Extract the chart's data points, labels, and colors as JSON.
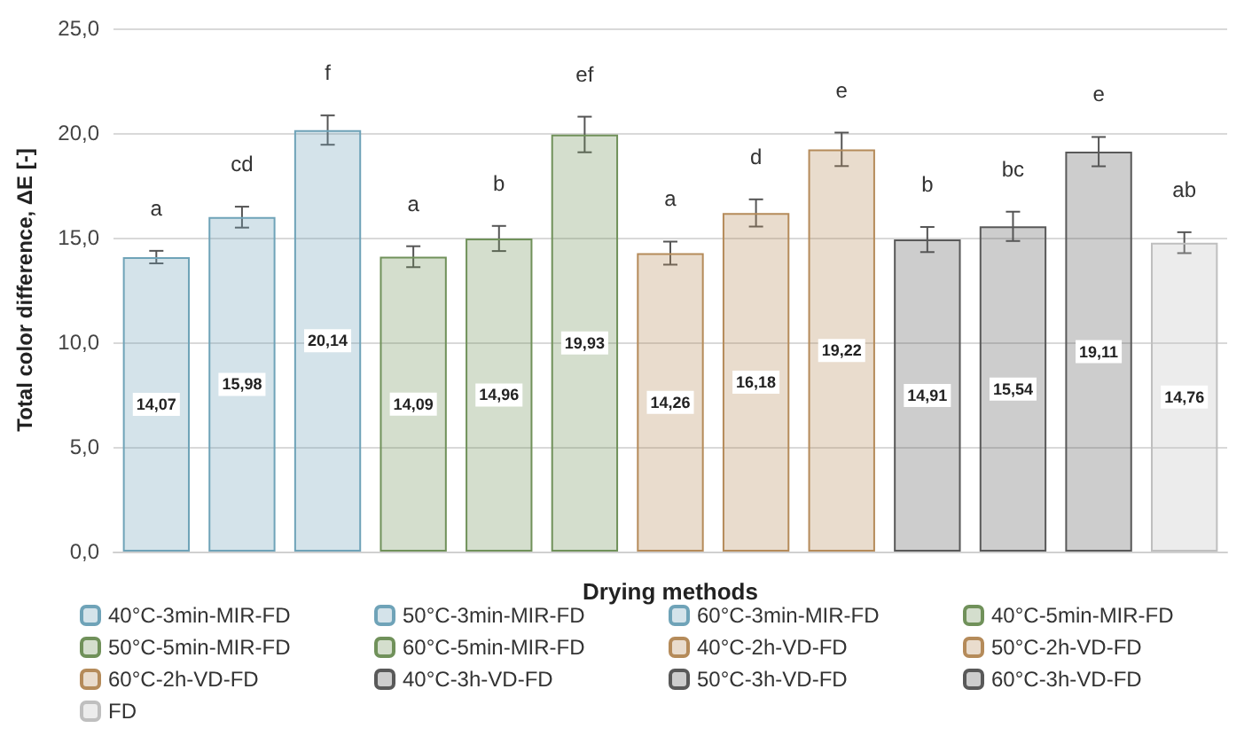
{
  "chart_data": {
    "type": "bar",
    "xlabel": "Drying methods",
    "ylabel": "Total color difference, ΔE [-]",
    "categories": [
      null,
      null,
      null,
      null,
      null,
      null,
      null,
      null,
      null,
      null,
      null,
      null,
      null
    ],
    "series": [
      {
        "name": "40°C-3min-MIR-FD",
        "color": "#6fa3b8",
        "values": [
          14.07,
          null,
          null,
          null,
          null,
          null,
          null,
          null,
          null,
          null,
          null,
          null,
          null
        ],
        "errors": [
          0.3,
          null,
          null,
          null,
          null,
          null,
          null,
          null,
          null,
          null,
          null,
          null,
          null
        ],
        "value_labels": [
          "14,07",
          null,
          null,
          null,
          null,
          null,
          null,
          null,
          null,
          null,
          null,
          null,
          null
        ]
      },
      {
        "name": "50°C-3min-MIR-FD",
        "color": "#6fa3b8",
        "values": [
          null,
          15.98,
          null,
          null,
          null,
          null,
          null,
          null,
          null,
          null,
          null,
          null,
          null
        ],
        "errors": [
          null,
          0.5,
          null,
          null,
          null,
          null,
          null,
          null,
          null,
          null,
          null,
          null,
          null
        ],
        "value_labels": [
          null,
          "15,98",
          null,
          null,
          null,
          null,
          null,
          null,
          null,
          null,
          null,
          null,
          null
        ]
      },
      {
        "name": "60°C-3min-MIR-FD",
        "color": "#6fa3b8",
        "values": [
          null,
          null,
          20.14,
          null,
          null,
          null,
          null,
          null,
          null,
          null,
          null,
          null,
          null
        ],
        "errors": [
          null,
          null,
          0.7,
          null,
          null,
          null,
          null,
          null,
          null,
          null,
          null,
          null,
          null
        ],
        "value_labels": [
          null,
          null,
          "20,14",
          null,
          null,
          null,
          null,
          null,
          null,
          null,
          null,
          null,
          null
        ]
      },
      {
        "name": "40°C-5min-MIR-FD",
        "color": "#70915a",
        "values": [
          null,
          null,
          null,
          14.09,
          null,
          null,
          null,
          null,
          null,
          null,
          null,
          null,
          null
        ],
        "errors": [
          null,
          null,
          null,
          0.5,
          null,
          null,
          null,
          null,
          null,
          null,
          null,
          null,
          null
        ],
        "value_labels": [
          null,
          null,
          null,
          "14,09",
          null,
          null,
          null,
          null,
          null,
          null,
          null,
          null,
          null
        ]
      },
      {
        "name": "50°C-5min-MIR-FD",
        "color": "#70915a",
        "values": [
          null,
          null,
          null,
          null,
          14.96,
          null,
          null,
          null,
          null,
          null,
          null,
          null,
          null
        ],
        "errors": [
          null,
          null,
          null,
          null,
          0.6,
          null,
          null,
          null,
          null,
          null,
          null,
          null,
          null
        ],
        "value_labels": [
          null,
          null,
          null,
          null,
          "14,96",
          null,
          null,
          null,
          null,
          null,
          null,
          null,
          null
        ]
      },
      {
        "name": "60°C-5min-MIR-FD",
        "color": "#70915a",
        "values": [
          null,
          null,
          null,
          null,
          null,
          19.93,
          null,
          null,
          null,
          null,
          null,
          null,
          null
        ],
        "errors": [
          null,
          null,
          null,
          null,
          null,
          0.85,
          null,
          null,
          null,
          null,
          null,
          null,
          null
        ],
        "value_labels": [
          null,
          null,
          null,
          null,
          null,
          "19,93",
          null,
          null,
          null,
          null,
          null,
          null,
          null
        ]
      },
      {
        "name": "40°C-2h-VD-FD",
        "color": "#b58b5a",
        "values": [
          null,
          null,
          null,
          null,
          null,
          null,
          14.26,
          null,
          null,
          null,
          null,
          null,
          null
        ],
        "errors": [
          null,
          null,
          null,
          null,
          null,
          null,
          0.55,
          null,
          null,
          null,
          null,
          null,
          null
        ],
        "value_labels": [
          null,
          null,
          null,
          null,
          null,
          null,
          "14,26",
          null,
          null,
          null,
          null,
          null,
          null
        ]
      },
      {
        "name": "50°C-2h-VD-FD",
        "color": "#b58b5a",
        "values": [
          null,
          null,
          null,
          null,
          null,
          null,
          null,
          16.18,
          null,
          null,
          null,
          null,
          null
        ],
        "errors": [
          null,
          null,
          null,
          null,
          null,
          null,
          null,
          0.65,
          null,
          null,
          null,
          null,
          null
        ],
        "value_labels": [
          null,
          null,
          null,
          null,
          null,
          null,
          null,
          "16,18",
          null,
          null,
          null,
          null,
          null
        ]
      },
      {
        "name": "60°C-2h-VD-FD",
        "color": "#b58b5a",
        "values": [
          null,
          null,
          null,
          null,
          null,
          null,
          null,
          null,
          19.22,
          null,
          null,
          null,
          null
        ],
        "errors": [
          null,
          null,
          null,
          null,
          null,
          null,
          null,
          null,
          0.8,
          null,
          null,
          null,
          null
        ],
        "value_labels": [
          null,
          null,
          null,
          null,
          null,
          null,
          null,
          null,
          "19,22",
          null,
          null,
          null,
          null
        ]
      },
      {
        "name": "40°C-3h-VD-FD",
        "color": "#595959",
        "values": [
          null,
          null,
          null,
          null,
          null,
          null,
          null,
          null,
          null,
          14.91,
          null,
          null,
          null
        ],
        "errors": [
          null,
          null,
          null,
          null,
          null,
          null,
          null,
          null,
          null,
          0.6,
          null,
          null,
          null
        ],
        "value_labels": [
          null,
          null,
          null,
          null,
          null,
          null,
          null,
          null,
          null,
          "14,91",
          null,
          null,
          null
        ]
      },
      {
        "name": "50°C-3h-VD-FD",
        "color": "#595959",
        "values": [
          null,
          null,
          null,
          null,
          null,
          null,
          null,
          null,
          null,
          null,
          15.54,
          null,
          null
        ],
        "errors": [
          null,
          null,
          null,
          null,
          null,
          null,
          null,
          null,
          null,
          null,
          0.7,
          null,
          null
        ],
        "value_labels": [
          null,
          null,
          null,
          null,
          null,
          null,
          null,
          null,
          null,
          null,
          "15,54",
          null,
          null
        ]
      },
      {
        "name": "60°C-3h-VD-FD",
        "color": "#595959",
        "values": [
          null,
          null,
          null,
          null,
          null,
          null,
          null,
          null,
          null,
          null,
          null,
          19.11,
          null
        ],
        "errors": [
          null,
          null,
          null,
          null,
          null,
          null,
          null,
          null,
          null,
          null,
          null,
          0.7,
          null
        ],
        "value_labels": [
          null,
          null,
          null,
          null,
          null,
          null,
          null,
          null,
          null,
          null,
          null,
          "19,11",
          null
        ]
      },
      {
        "name": "FD",
        "color": "#bfbfbf",
        "values": [
          null,
          null,
          null,
          null,
          null,
          null,
          null,
          null,
          null,
          null,
          null,
          null,
          14.76
        ],
        "errors": [
          null,
          null,
          null,
          null,
          null,
          null,
          null,
          null,
          null,
          null,
          null,
          null,
          0.5
        ],
        "value_labels": [
          null,
          null,
          null,
          null,
          null,
          null,
          null,
          null,
          null,
          null,
          null,
          null,
          "14,76"
        ]
      }
    ],
    "annotations": [
      "a",
      "cd",
      "f",
      "a",
      "b",
      "ef",
      "a",
      "d",
      "e",
      "b",
      "bc",
      "e",
      "ab"
    ],
    "ylim": [
      0,
      25
    ],
    "yticks": [
      {
        "value": 0,
        "label": "0,0"
      },
      {
        "value": 5,
        "label": "5,0"
      },
      {
        "value": 10,
        "label": "10,0"
      },
      {
        "value": 15,
        "label": "15,0"
      },
      {
        "value": 20,
        "label": "20,0"
      },
      {
        "value": 25,
        "label": "25,0"
      }
    ],
    "grid": "y",
    "legend": "bottom"
  }
}
